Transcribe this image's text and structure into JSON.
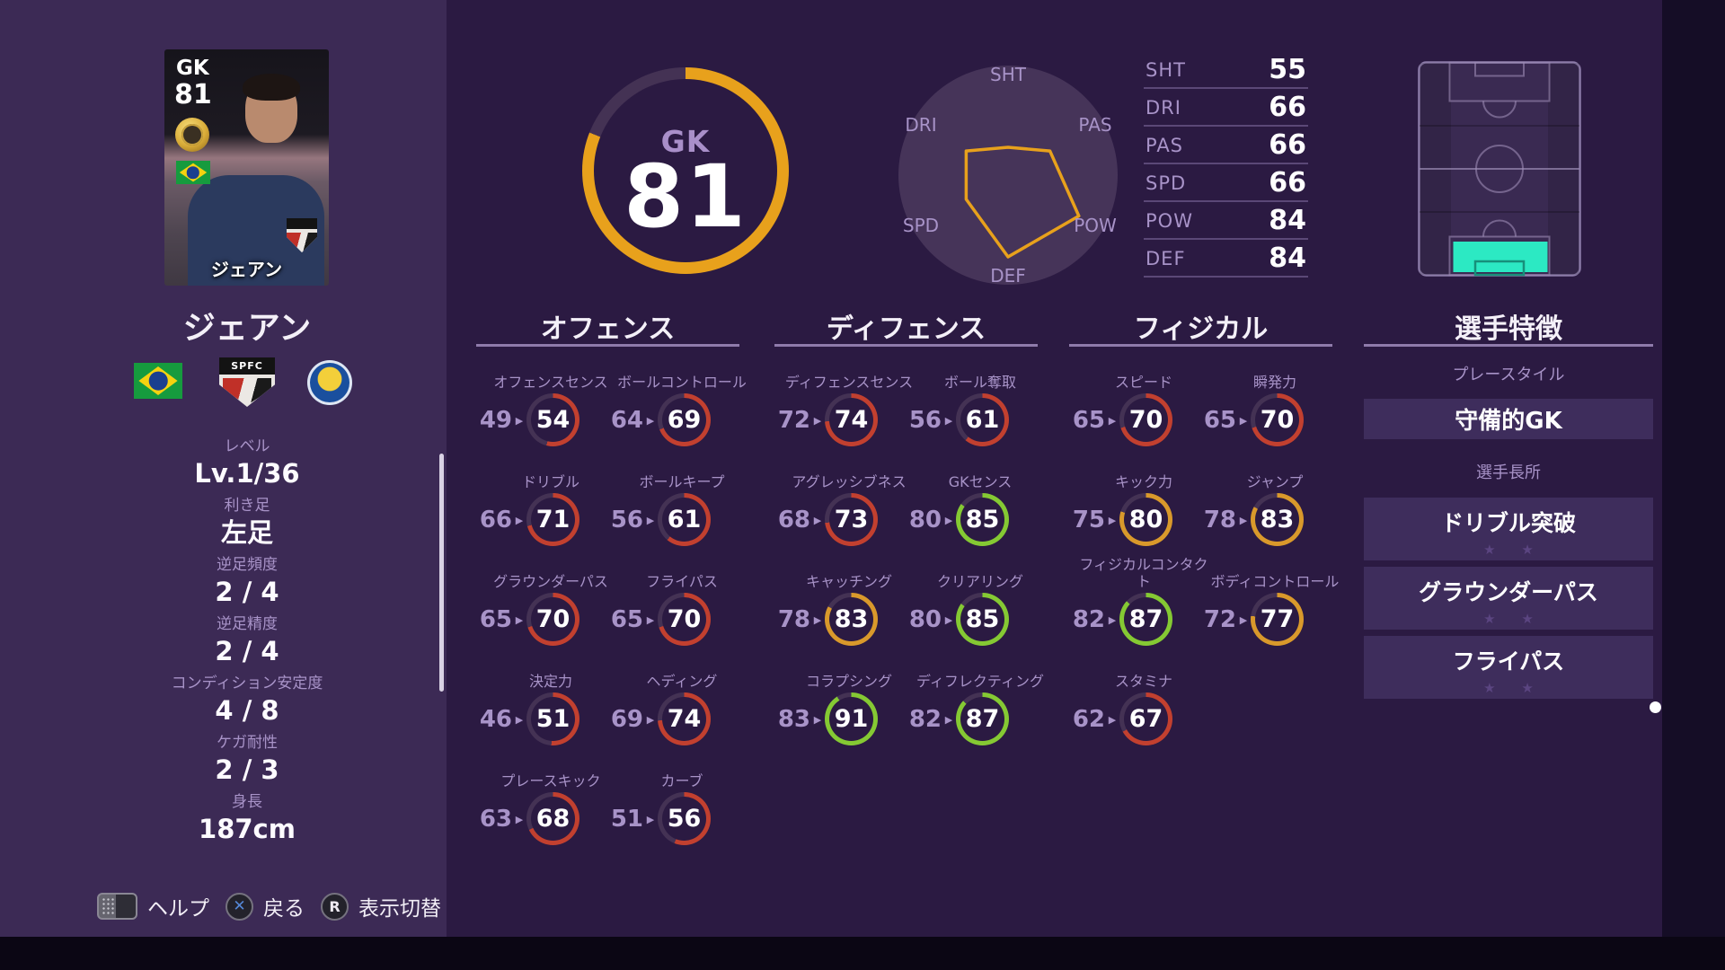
{
  "colors": {
    "accent_orange": "#E8A11C",
    "ring_track": "#443254",
    "ring_red": "#C2402F",
    "ring_orange": "#D9992B",
    "ring_green": "#85C933",
    "highlight_cyan": "#2CE9C3"
  },
  "player": {
    "name": "ジェアン"
  },
  "player_card": {
    "position": "GK",
    "rating": "81",
    "name": "ジェアン"
  },
  "badges": {
    "club_text": "SPFC"
  },
  "attributes": [
    {
      "label": "レベル",
      "value": "Lv.1/36"
    },
    {
      "label": "利き足",
      "value": "左足"
    },
    {
      "label": "逆足頻度",
      "value": "2 / 4"
    },
    {
      "label": "逆足精度",
      "value": "2 / 4"
    },
    {
      "label": "コンディション安定度",
      "value": "4 / 8"
    },
    {
      "label": "ケガ耐性",
      "value": "2 / 3"
    },
    {
      "label": "身長",
      "value": "187cm"
    }
  ],
  "overall_gauge": {
    "position": "GK",
    "rating": "81",
    "percent": 81
  },
  "chart_data": {
    "type": "radar",
    "categories": [
      "SHT",
      "PAS",
      "POW",
      "DEF",
      "SPD",
      "DRI"
    ],
    "values": [
      55,
      66,
      84,
      84,
      66,
      66
    ],
    "axis_min": 40,
    "axis_max": 99,
    "line_color": "#E8A11C",
    "title": ""
  },
  "power_list": [
    {
      "label": "SHT",
      "value": "55"
    },
    {
      "label": "DRI",
      "value": "66"
    },
    {
      "label": "PAS",
      "value": "66"
    },
    {
      "label": "SPD",
      "value": "66"
    },
    {
      "label": "POW",
      "value": "84"
    },
    {
      "label": "DEF",
      "value": "84"
    }
  ],
  "stat_columns": [
    {
      "title": "オフェンス",
      "stats": [
        {
          "label": "オフェンスセンス",
          "base": 49,
          "value": 54
        },
        {
          "label": "ボールコントロール",
          "base": 64,
          "value": 69
        },
        {
          "label": "ドリブル",
          "base": 66,
          "value": 71
        },
        {
          "label": "ボールキープ",
          "base": 56,
          "value": 61
        },
        {
          "label": "グラウンダーパス",
          "base": 65,
          "value": 70
        },
        {
          "label": "フライパス",
          "base": 65,
          "value": 70
        },
        {
          "label": "決定力",
          "base": 46,
          "value": 51
        },
        {
          "label": "ヘディング",
          "base": 69,
          "value": 74
        },
        {
          "label": "プレースキック",
          "base": 63,
          "value": 68
        },
        {
          "label": "カーブ",
          "base": 51,
          "value": 56
        }
      ]
    },
    {
      "title": "ディフェンス",
      "stats": [
        {
          "label": "ディフェンスセンス",
          "base": 72,
          "value": 74
        },
        {
          "label": "ボール奪取",
          "base": 56,
          "value": 61
        },
        {
          "label": "アグレッシブネス",
          "base": 68,
          "value": 73
        },
        {
          "label": "GKセンス",
          "base": 80,
          "value": 85
        },
        {
          "label": "キャッチング",
          "base": 78,
          "value": 83
        },
        {
          "label": "クリアリング",
          "base": 80,
          "value": 85
        },
        {
          "label": "コラプシング",
          "base": 83,
          "value": 91
        },
        {
          "label": "ディフレクティング",
          "base": 82,
          "value": 87
        }
      ]
    },
    {
      "title": "フィジカル",
      "stats": [
        {
          "label": "スピード",
          "base": 65,
          "value": 70
        },
        {
          "label": "瞬発力",
          "base": 65,
          "value": 70
        },
        {
          "label": "キック力",
          "base": 75,
          "value": 80
        },
        {
          "label": "ジャンプ",
          "base": 78,
          "value": 83
        },
        {
          "label": "フィジカルコンタクト",
          "base": 82,
          "value": 87
        },
        {
          "label": "ボディコントロール",
          "base": 72,
          "value": 77
        },
        {
          "label": "スタミナ",
          "base": 62,
          "value": 67
        }
      ]
    }
  ],
  "traits": {
    "title": "選手特徴",
    "playstyle_label": "プレースタイル",
    "playstyle": "守備的GK",
    "skills_label": "選手長所",
    "skills": [
      {
        "name": "ドリブル突破",
        "stars": 2
      },
      {
        "name": "グラウンダーパス",
        "stars": 2
      },
      {
        "name": "フライパス",
        "stars": 2
      }
    ]
  },
  "field_map": {
    "highlighted_position": "GK"
  },
  "footer": {
    "items": [
      {
        "icon": "touchpad-button-icon",
        "glyph": "",
        "label": "ヘルプ"
      },
      {
        "icon": "cross-button-icon",
        "glyph": "✕",
        "label": "戻る"
      },
      {
        "icon": "r-button-icon",
        "glyph": "R",
        "label": "表示切替"
      }
    ]
  },
  "pagination": {
    "dots": 3,
    "active_index": 0
  }
}
